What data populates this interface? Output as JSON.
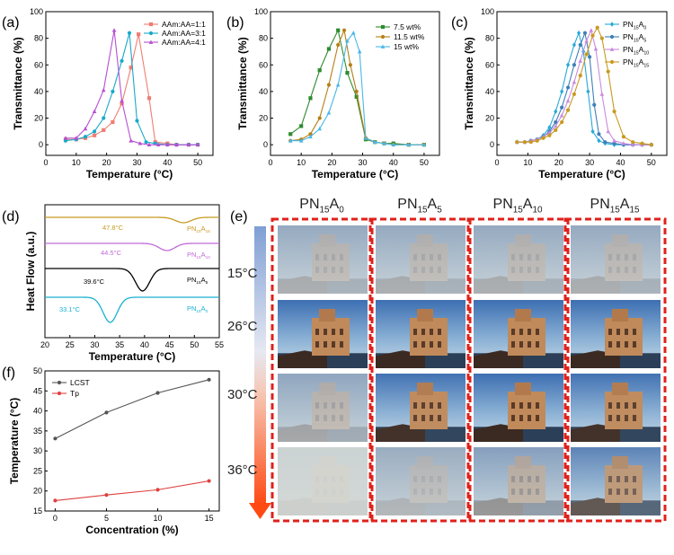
{
  "panel_labels": [
    "(a)",
    "(b)",
    "(c)",
    "(d)",
    "(e)",
    "(f)"
  ],
  "chart_data": [
    {
      "panel": "(a)",
      "type": "line",
      "xlabel": "Temperature (°C)",
      "ylabel": "Transmittance (%)",
      "xlim": [
        0,
        55
      ],
      "ylim": [
        -8,
        100
      ],
      "xticks": [
        0,
        10,
        20,
        30,
        40,
        50
      ],
      "yticks": [
        0,
        20,
        40,
        60,
        80,
        100
      ],
      "legend_position": "top-right",
      "series": [
        {
          "name": "AAm:AA=1:1",
          "color": "#f07c73",
          "marker": "square",
          "x": [
            6.5,
            10,
            13,
            16,
            19,
            22,
            25,
            28,
            30.5,
            34,
            36,
            40,
            43,
            47,
            50
          ],
          "y": [
            4,
            4,
            5,
            7,
            11,
            17,
            31,
            58,
            83,
            35,
            2,
            1,
            0,
            0,
            0
          ]
        },
        {
          "name": "AAm:AA=3:1",
          "color": "#1aa9c8",
          "marker": "circle",
          "x": [
            6.5,
            10,
            13,
            16,
            19,
            22,
            25,
            27.5,
            30,
            33,
            36,
            40,
            43,
            47,
            50
          ],
          "y": [
            3,
            4,
            6,
            10,
            20,
            40,
            63,
            84,
            18,
            2,
            1,
            0,
            0,
            0,
            0
          ]
        },
        {
          "name": "AAm:AA=4:1",
          "color": "#b64fd1",
          "marker": "triangle",
          "x": [
            6.5,
            10,
            13,
            16,
            19,
            22.5,
            25,
            28,
            31,
            34,
            37,
            40,
            43,
            47,
            50
          ],
          "y": [
            5,
            5,
            12,
            25,
            41,
            86,
            33,
            3,
            1,
            0,
            0,
            0,
            0,
            0,
            0
          ]
        }
      ]
    },
    {
      "panel": "(b)",
      "type": "line",
      "xlabel": "Temperature (°C)",
      "ylabel": "Transmittance (%)",
      "xlim": [
        0,
        55
      ],
      "ylim": [
        -8,
        100
      ],
      "xticks": [
        0,
        10,
        20,
        30,
        40,
        50
      ],
      "yticks": [
        0,
        20,
        40,
        60,
        80,
        100
      ],
      "legend_position": "top-right",
      "series": [
        {
          "name": "7.5 wt%",
          "color": "#2e8b2e",
          "marker": "square",
          "x": [
            6.5,
            10,
            13,
            16,
            19,
            22,
            25,
            28,
            31,
            34,
            37,
            40,
            45,
            50
          ],
          "y": [
            8,
            14,
            35,
            56,
            72,
            86,
            54,
            36,
            4,
            2,
            1,
            1,
            0,
            0
          ]
        },
        {
          "name": "11.5 wt%",
          "color": "#b57f16",
          "marker": "circle",
          "x": [
            6.5,
            10,
            13,
            16,
            19,
            22,
            24,
            26,
            28,
            31,
            34,
            37,
            40,
            45,
            50
          ],
          "y": [
            3,
            4,
            8,
            20,
            45,
            75,
            86,
            60,
            40,
            5,
            2,
            1,
            0,
            0,
            0
          ]
        },
        {
          "name": "15 wt%",
          "color": "#48b8e8",
          "marker": "triangle",
          "x": [
            6.5,
            10,
            13,
            16,
            19,
            22,
            25,
            27,
            29,
            31,
            34,
            37,
            40,
            45,
            50
          ],
          "y": [
            3,
            3,
            6,
            12,
            24,
            45,
            78,
            84,
            70,
            5,
            2,
            1,
            0,
            0,
            0
          ]
        }
      ]
    },
    {
      "panel": "(c)",
      "type": "line",
      "xlabel": "Temperature (°C)",
      "ylabel": "Transmittance (%)",
      "xlim": [
        0,
        55
      ],
      "ylim": [
        -8,
        100
      ],
      "xticks": [
        0,
        10,
        20,
        30,
        40,
        50
      ],
      "yticks": [
        0,
        20,
        40,
        60,
        80,
        100
      ],
      "legend_position": "top-right",
      "series": [
        {
          "name": "PN15A0",
          "name_main": "PN",
          "name_sub1": "15",
          "name_mid": "A",
          "name_sub2": "0",
          "color": "#28a9d8",
          "marker": "diamond",
          "x": [
            6.5,
            9,
            11,
            13,
            15,
            17,
            19,
            21,
            23,
            25,
            26.5,
            28,
            29.5,
            31,
            33,
            35,
            38,
            41,
            44,
            47,
            50
          ],
          "y": [
            2,
            2,
            3,
            4,
            7,
            13,
            25,
            40,
            60,
            75,
            84,
            70,
            40,
            10,
            3,
            1,
            0,
            0,
            0,
            0,
            0
          ]
        },
        {
          "name": "PN15A5",
          "name_main": "PN",
          "name_sub1": "15",
          "name_mid": "A",
          "name_sub2": "5",
          "color": "#3f7fb8",
          "marker": "circle",
          "x": [
            6.5,
            9,
            11,
            13,
            15,
            17,
            19,
            21,
            23,
            25,
            27,
            28.5,
            30,
            31.5,
            33,
            35,
            38,
            41,
            44,
            47,
            50
          ],
          "y": [
            2,
            2,
            3,
            4,
            6,
            10,
            17,
            28,
            43,
            60,
            75,
            84,
            66,
            30,
            8,
            2,
            1,
            0,
            0,
            0,
            0
          ]
        },
        {
          "name": "PN15A10",
          "name_main": "PN",
          "name_sub1": "15",
          "name_mid": "A",
          "name_sub2": "10",
          "color": "#c98ae0",
          "marker": "triangle",
          "x": [
            6.5,
            9,
            11,
            13,
            15,
            17,
            19,
            21,
            23,
            25,
            27,
            29,
            30.5,
            32,
            34,
            36,
            38,
            41,
            44,
            47,
            50
          ],
          "y": [
            2,
            2,
            3,
            4,
            6,
            9,
            14,
            22,
            33,
            47,
            63,
            78,
            86,
            72,
            38,
            10,
            3,
            1,
            0,
            0,
            0
          ]
        },
        {
          "name": "PN15A15",
          "name_main": "PN",
          "name_sub1": "15",
          "name_mid": "A",
          "name_sub2": "15",
          "color": "#c89a20",
          "marker": "circle",
          "x": [
            6.5,
            9,
            11,
            13,
            15,
            17,
            19,
            21,
            23,
            25,
            27,
            29,
            31,
            32.5,
            34,
            36,
            38,
            41,
            44,
            47,
            50
          ],
          "y": [
            2,
            2,
            2,
            3,
            5,
            7,
            11,
            17,
            26,
            38,
            52,
            68,
            82,
            88,
            80,
            55,
            25,
            6,
            2,
            1,
            0
          ]
        }
      ]
    },
    {
      "panel": "(d)",
      "type": "line",
      "xlabel": "Temperature (°C)",
      "ylabel": "Heat Flow (a.u.)",
      "xlim": [
        20,
        55
      ],
      "xticks": [
        20,
        25,
        30,
        35,
        40,
        45,
        50,
        55
      ],
      "annotations": [
        "47.8°C",
        "44.5°C",
        "39.6°C",
        "33.1°C"
      ],
      "series": [
        {
          "name": "PN15A15",
          "name_main": "PN",
          "name_sub1": "15",
          "name_mid": "A",
          "name_sub2": "15",
          "color": "#c89a20",
          "dip_center": 47.8,
          "dip_depth": 0.25
        },
        {
          "name": "PN15A10",
          "name_main": "PN",
          "name_sub1": "15",
          "name_mid": "A",
          "name_sub2": "10",
          "color": "#c06bd8",
          "dip_center": 44.5,
          "dip_depth": 0.45
        },
        {
          "name": "PN15A5",
          "name_main": "PN",
          "name_sub1": "15",
          "name_mid": "A",
          "name_sub2": "5",
          "color": "#000000",
          "dip_center": 39.6,
          "dip_depth": 1.0
        },
        {
          "name": "PN15A0",
          "name_main": "PN",
          "name_sub1": "15",
          "name_mid": "A",
          "name_sub2": "0",
          "color": "#1ab0d0",
          "dip_center": 33.1,
          "dip_depth": 1.0
        }
      ]
    },
    {
      "panel": "(f)",
      "type": "line",
      "xlabel": "Concentration (%)",
      "ylabel": "Temperature (°C)",
      "xlim": [
        -1,
        16
      ],
      "ylim": [
        15,
        50
      ],
      "xticks": [
        0,
        5,
        10,
        15
      ],
      "yticks": [
        15,
        20,
        25,
        30,
        35,
        40,
        45,
        50
      ],
      "legend_position": "top-left",
      "series": [
        {
          "name": "LCST",
          "color": "#555555",
          "marker": "circle",
          "x": [
            0,
            5,
            10,
            15
          ],
          "y": [
            33.1,
            39.6,
            44.5,
            47.8
          ]
        },
        {
          "name": "Tp",
          "color": "#e04040",
          "marker": "circle",
          "x": [
            0,
            5,
            10,
            15
          ],
          "y": [
            17.6,
            19.0,
            20.3,
            22.5
          ]
        }
      ]
    }
  ],
  "photo_grid": {
    "panel": "(e)",
    "columns": [
      {
        "main": "PN",
        "sub1": "15",
        "mid": "A",
        "sub2": "0"
      },
      {
        "main": "PN",
        "sub1": "15",
        "mid": "A",
        "sub2": "5"
      },
      {
        "main": "PN",
        "sub1": "15",
        "mid": "A",
        "sub2": "10"
      },
      {
        "main": "PN",
        "sub1": "15",
        "mid": "A",
        "sub2": "15"
      }
    ],
    "rows": [
      "15°C",
      "26°C",
      "30°C",
      "36°C"
    ],
    "clarity": [
      [
        0.15,
        0.15,
        0.15,
        0.15
      ],
      [
        1.0,
        1.0,
        1.0,
        1.0
      ],
      [
        0.2,
        0.95,
        1.0,
        0.95
      ],
      [
        0.0,
        0.1,
        0.3,
        0.7
      ]
    ],
    "colors": {
      "border": "#e0211b",
      "arrow_top": "#7f9fd4",
      "arrow_bottom": "#ff4a14"
    }
  }
}
